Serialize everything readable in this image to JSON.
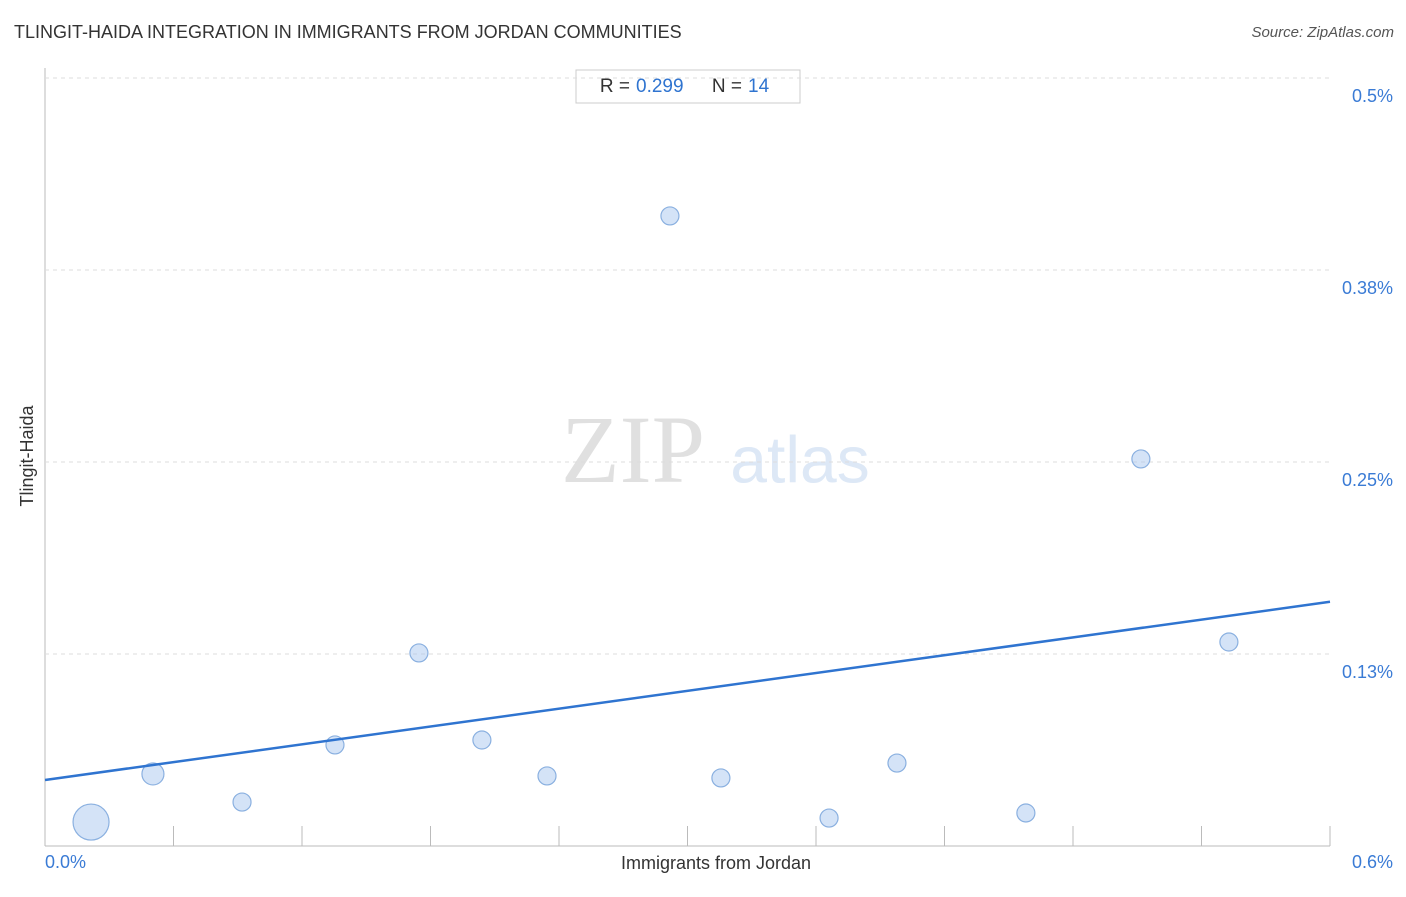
{
  "chart_data": {
    "type": "scatter",
    "title": "TLINGIT-HAIDA INTEGRATION IN IMMIGRANTS FROM JORDAN COMMUNITIES",
    "source": "Source: ZipAtlas.com",
    "x_label": "Immigrants from Jordan",
    "y_label": "Tlingit-Haida",
    "watermark": {
      "zip": "ZIP",
      "atlas": "atlas"
    },
    "stats": {
      "r_label": "R =",
      "r": 0.299,
      "n_label": "N =",
      "n": 14
    },
    "color": "#2f74d0",
    "x": [
      0.0215,
      0.0504,
      0.092,
      0.1354,
      0.1746,
      0.204,
      0.2344,
      0.2918,
      0.3156,
      0.3661,
      0.3978,
      0.458,
      0.5117,
      0.5528
    ],
    "values": [
      0.0156,
      0.0469,
      0.0286,
      0.0658,
      0.1257,
      0.069,
      0.0456,
      0.4102,
      0.0443,
      0.0182,
      0.054,
      0.0215,
      0.252,
      0.1328
    ],
    "sizes": [
      18,
      11,
      9,
      9,
      9,
      9,
      9,
      9,
      9,
      9,
      9,
      9,
      9,
      9
    ],
    "trendline": {
      "x": [
        0,
        0.6
      ],
      "y": [
        0.043,
        0.159
      ]
    },
    "xlim": [
      0,
      0.6
    ],
    "ylim": [
      0,
      0.5
    ],
    "xticks": [
      {
        "value": 0,
        "label": "0.0%"
      },
      {
        "value": 0.6,
        "label": "0.6%"
      }
    ],
    "x_tick_marks": [
      0.06,
      0.12,
      0.18,
      0.24,
      0.3,
      0.36,
      0.42,
      0.48,
      0.54,
      0.6
    ],
    "yticks": [
      {
        "value": 0.125,
        "label": "0.13%"
      },
      {
        "value": 0.25,
        "label": "0.25%"
      },
      {
        "value": 0.375,
        "label": "0.38%"
      },
      {
        "value": 0.5,
        "label": "0.5%"
      }
    ],
    "grid": true
  }
}
